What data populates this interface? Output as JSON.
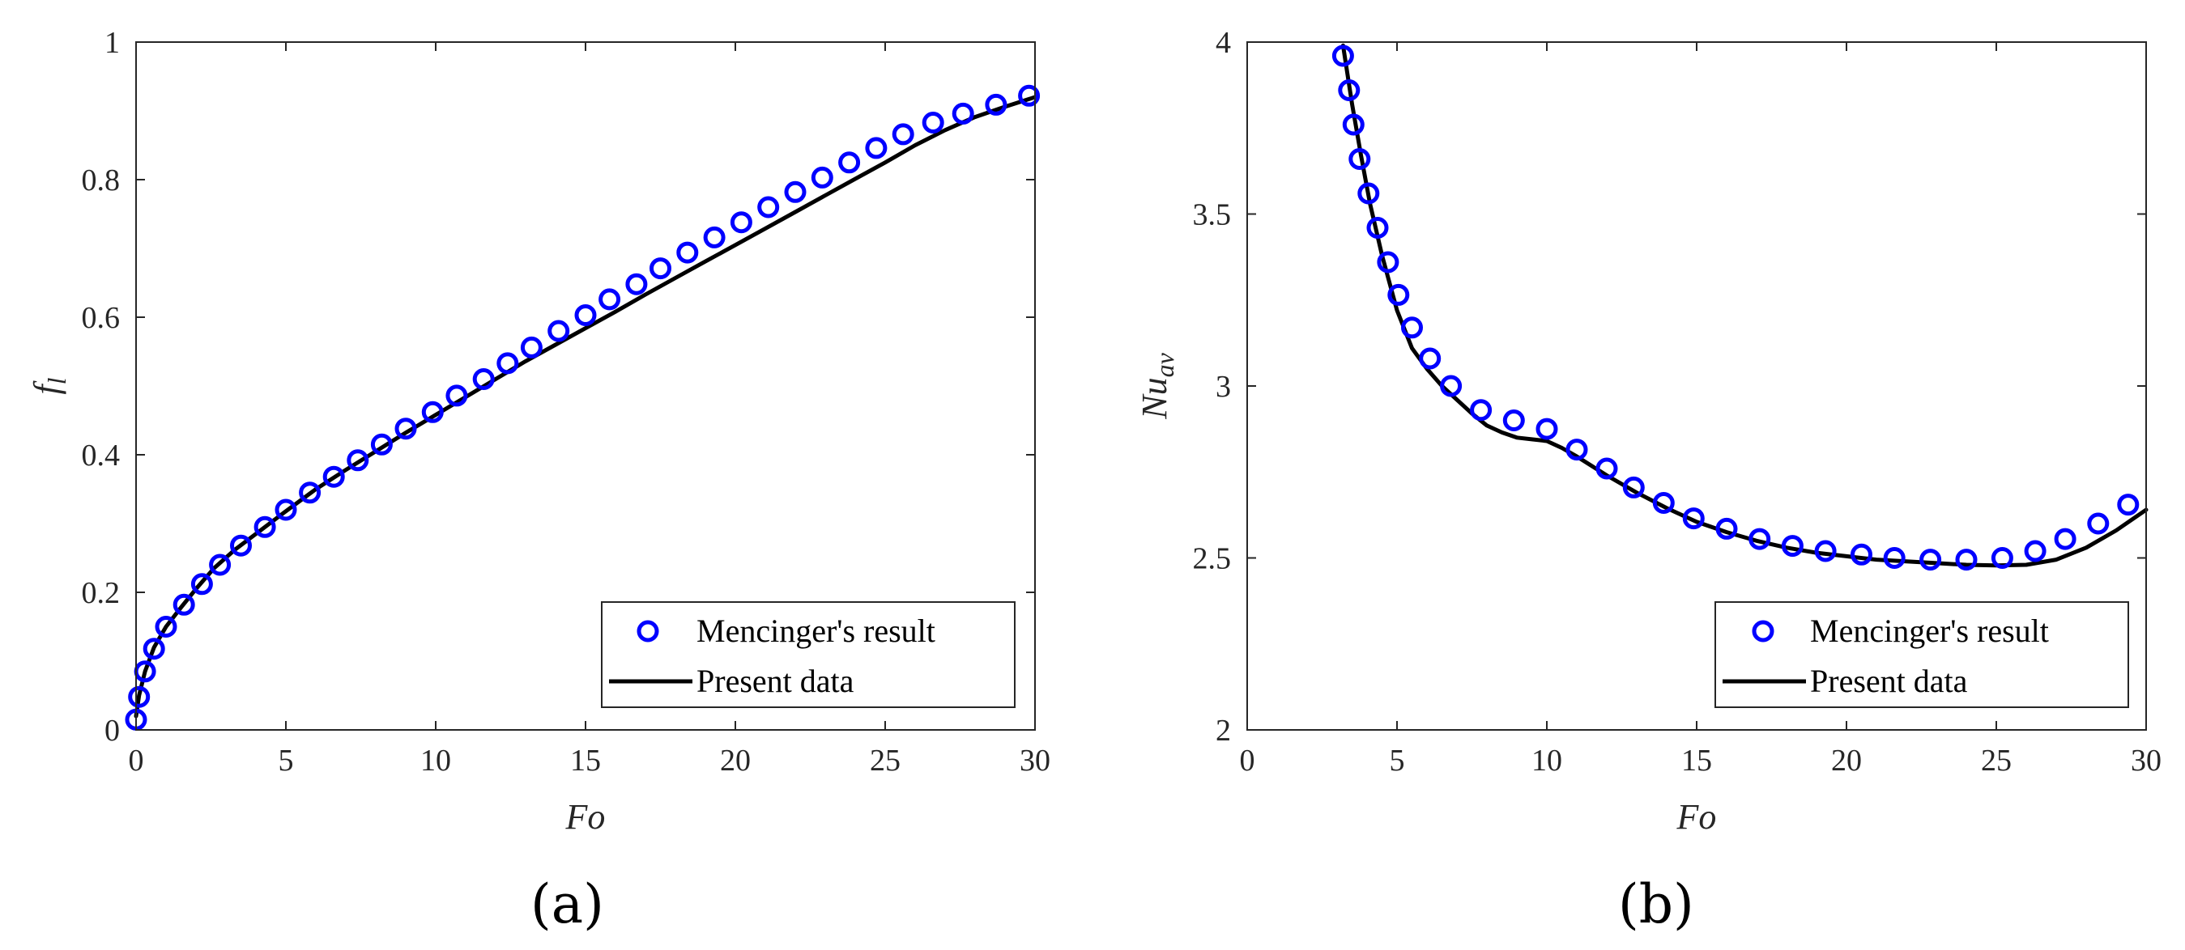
{
  "colors": {
    "marker": "#0000ff",
    "line": "#000000",
    "axis": "#262626",
    "background": "#ffffff"
  },
  "chart_data": [
    {
      "type": "line",
      "panel_label": "(a)",
      "title": "",
      "xlabel": "Fo",
      "ylabel": "f",
      "ylabel_sub": "l",
      "xlim": [
        0,
        30
      ],
      "ylim": [
        0,
        1
      ],
      "xticks": [
        "0",
        "5",
        "10",
        "15",
        "20",
        "25",
        "30"
      ],
      "yticks": [
        "0",
        "0.2",
        "0.4",
        "0.6",
        "0.8",
        "1"
      ],
      "grid": false,
      "legend_position": "bottom-right",
      "series": [
        {
          "name": "Mencinger's result",
          "style": "markers-circle",
          "x": [
            0,
            0.1,
            0.3,
            0.6,
            1.0,
            1.6,
            2.2,
            2.8,
            3.5,
            4.3,
            5.0,
            5.8,
            6.6,
            7.4,
            8.2,
            9.0,
            9.9,
            10.7,
            11.6,
            12.4,
            13.2,
            14.1,
            15.0,
            15.8,
            16.7,
            17.5,
            18.4,
            19.3,
            20.2,
            21.1,
            22.0,
            22.9,
            23.8,
            24.7,
            25.6,
            26.6,
            27.6,
            28.7,
            29.8
          ],
          "y": [
            0.015,
            0.048,
            0.085,
            0.118,
            0.15,
            0.182,
            0.212,
            0.24,
            0.268,
            0.295,
            0.32,
            0.345,
            0.368,
            0.392,
            0.415,
            0.438,
            0.462,
            0.486,
            0.51,
            0.533,
            0.556,
            0.58,
            0.603,
            0.626,
            0.648,
            0.671,
            0.694,
            0.716,
            0.738,
            0.76,
            0.782,
            0.803,
            0.825,
            0.846,
            0.866,
            0.883,
            0.896,
            0.909,
            0.922
          ]
        },
        {
          "name": "Present data",
          "style": "solid-line",
          "x": [
            0,
            0.1,
            0.3,
            0.6,
            1.0,
            1.5,
            2.0,
            2.6,
            3.3,
            4.0,
            5.0,
            6.0,
            7.0,
            8.0,
            9.0,
            10.0,
            11.0,
            12.0,
            13.0,
            14.0,
            15.0,
            16.0,
            17.0,
            18.0,
            19.0,
            20.0,
            21.0,
            22.0,
            23.0,
            24.0,
            25.0,
            26.0,
            27.0,
            28.0,
            29.0,
            30.0
          ],
          "y": [
            0.02,
            0.05,
            0.085,
            0.12,
            0.15,
            0.178,
            0.205,
            0.235,
            0.262,
            0.285,
            0.318,
            0.35,
            0.378,
            0.405,
            0.432,
            0.458,
            0.484,
            0.51,
            0.536,
            0.56,
            0.584,
            0.608,
            0.633,
            0.657,
            0.681,
            0.705,
            0.729,
            0.753,
            0.777,
            0.801,
            0.825,
            0.85,
            0.872,
            0.891,
            0.906,
            0.92
          ]
        }
      ]
    },
    {
      "type": "line",
      "panel_label": "(b)",
      "title": "",
      "xlabel": "Fo",
      "ylabel": "Nu",
      "ylabel_sub": "av",
      "xlim": [
        0,
        30
      ],
      "ylim": [
        2,
        4
      ],
      "xticks": [
        "0",
        "5",
        "10",
        "15",
        "20",
        "25",
        "30"
      ],
      "yticks": [
        "2",
        "2.5",
        "3",
        "3.5",
        "4"
      ],
      "grid": false,
      "legend_position": "bottom-right",
      "series": [
        {
          "name": "Mencinger's result",
          "style": "markers-circle",
          "x": [
            3.2,
            3.4,
            3.55,
            3.75,
            4.05,
            4.35,
            4.7,
            5.05,
            5.5,
            6.1,
            6.8,
            7.8,
            8.9,
            10.0,
            11.0,
            12.0,
            12.9,
            13.9,
            14.9,
            16.0,
            17.1,
            18.2,
            19.3,
            20.5,
            21.6,
            22.8,
            24.0,
            25.2,
            26.3,
            27.3,
            28.4,
            29.4
          ],
          "y": [
            3.96,
            3.86,
            3.76,
            3.66,
            3.56,
            3.46,
            3.36,
            3.265,
            3.17,
            3.08,
            3.0,
            2.93,
            2.9,
            2.875,
            2.815,
            2.76,
            2.705,
            2.66,
            2.615,
            2.585,
            2.555,
            2.535,
            2.52,
            2.51,
            2.5,
            2.495,
            2.495,
            2.5,
            2.52,
            2.555,
            2.6,
            2.655
          ]
        },
        {
          "name": "Present data",
          "style": "solid-line",
          "x": [
            3.2,
            3.5,
            3.8,
            4.1,
            4.5,
            5.0,
            5.5,
            6.0,
            6.5,
            7.0,
            7.5,
            8.0,
            8.5,
            9.0,
            9.5,
            10.0,
            10.5,
            11.0,
            12.0,
            13.0,
            14.0,
            15.0,
            16.0,
            17.0,
            18.0,
            19.0,
            20.0,
            21.0,
            22.0,
            23.0,
            24.0,
            25.0,
            26.0,
            27.0,
            28.0,
            29.0,
            30.0
          ],
          "y": [
            3.99,
            3.82,
            3.67,
            3.53,
            3.38,
            3.22,
            3.11,
            3.05,
            3.0,
            2.96,
            2.92,
            2.885,
            2.865,
            2.85,
            2.845,
            2.84,
            2.82,
            2.795,
            2.74,
            2.69,
            2.645,
            2.605,
            2.575,
            2.55,
            2.53,
            2.515,
            2.505,
            2.495,
            2.49,
            2.485,
            2.48,
            2.478,
            2.48,
            2.495,
            2.53,
            2.58,
            2.64
          ]
        }
      ]
    }
  ]
}
